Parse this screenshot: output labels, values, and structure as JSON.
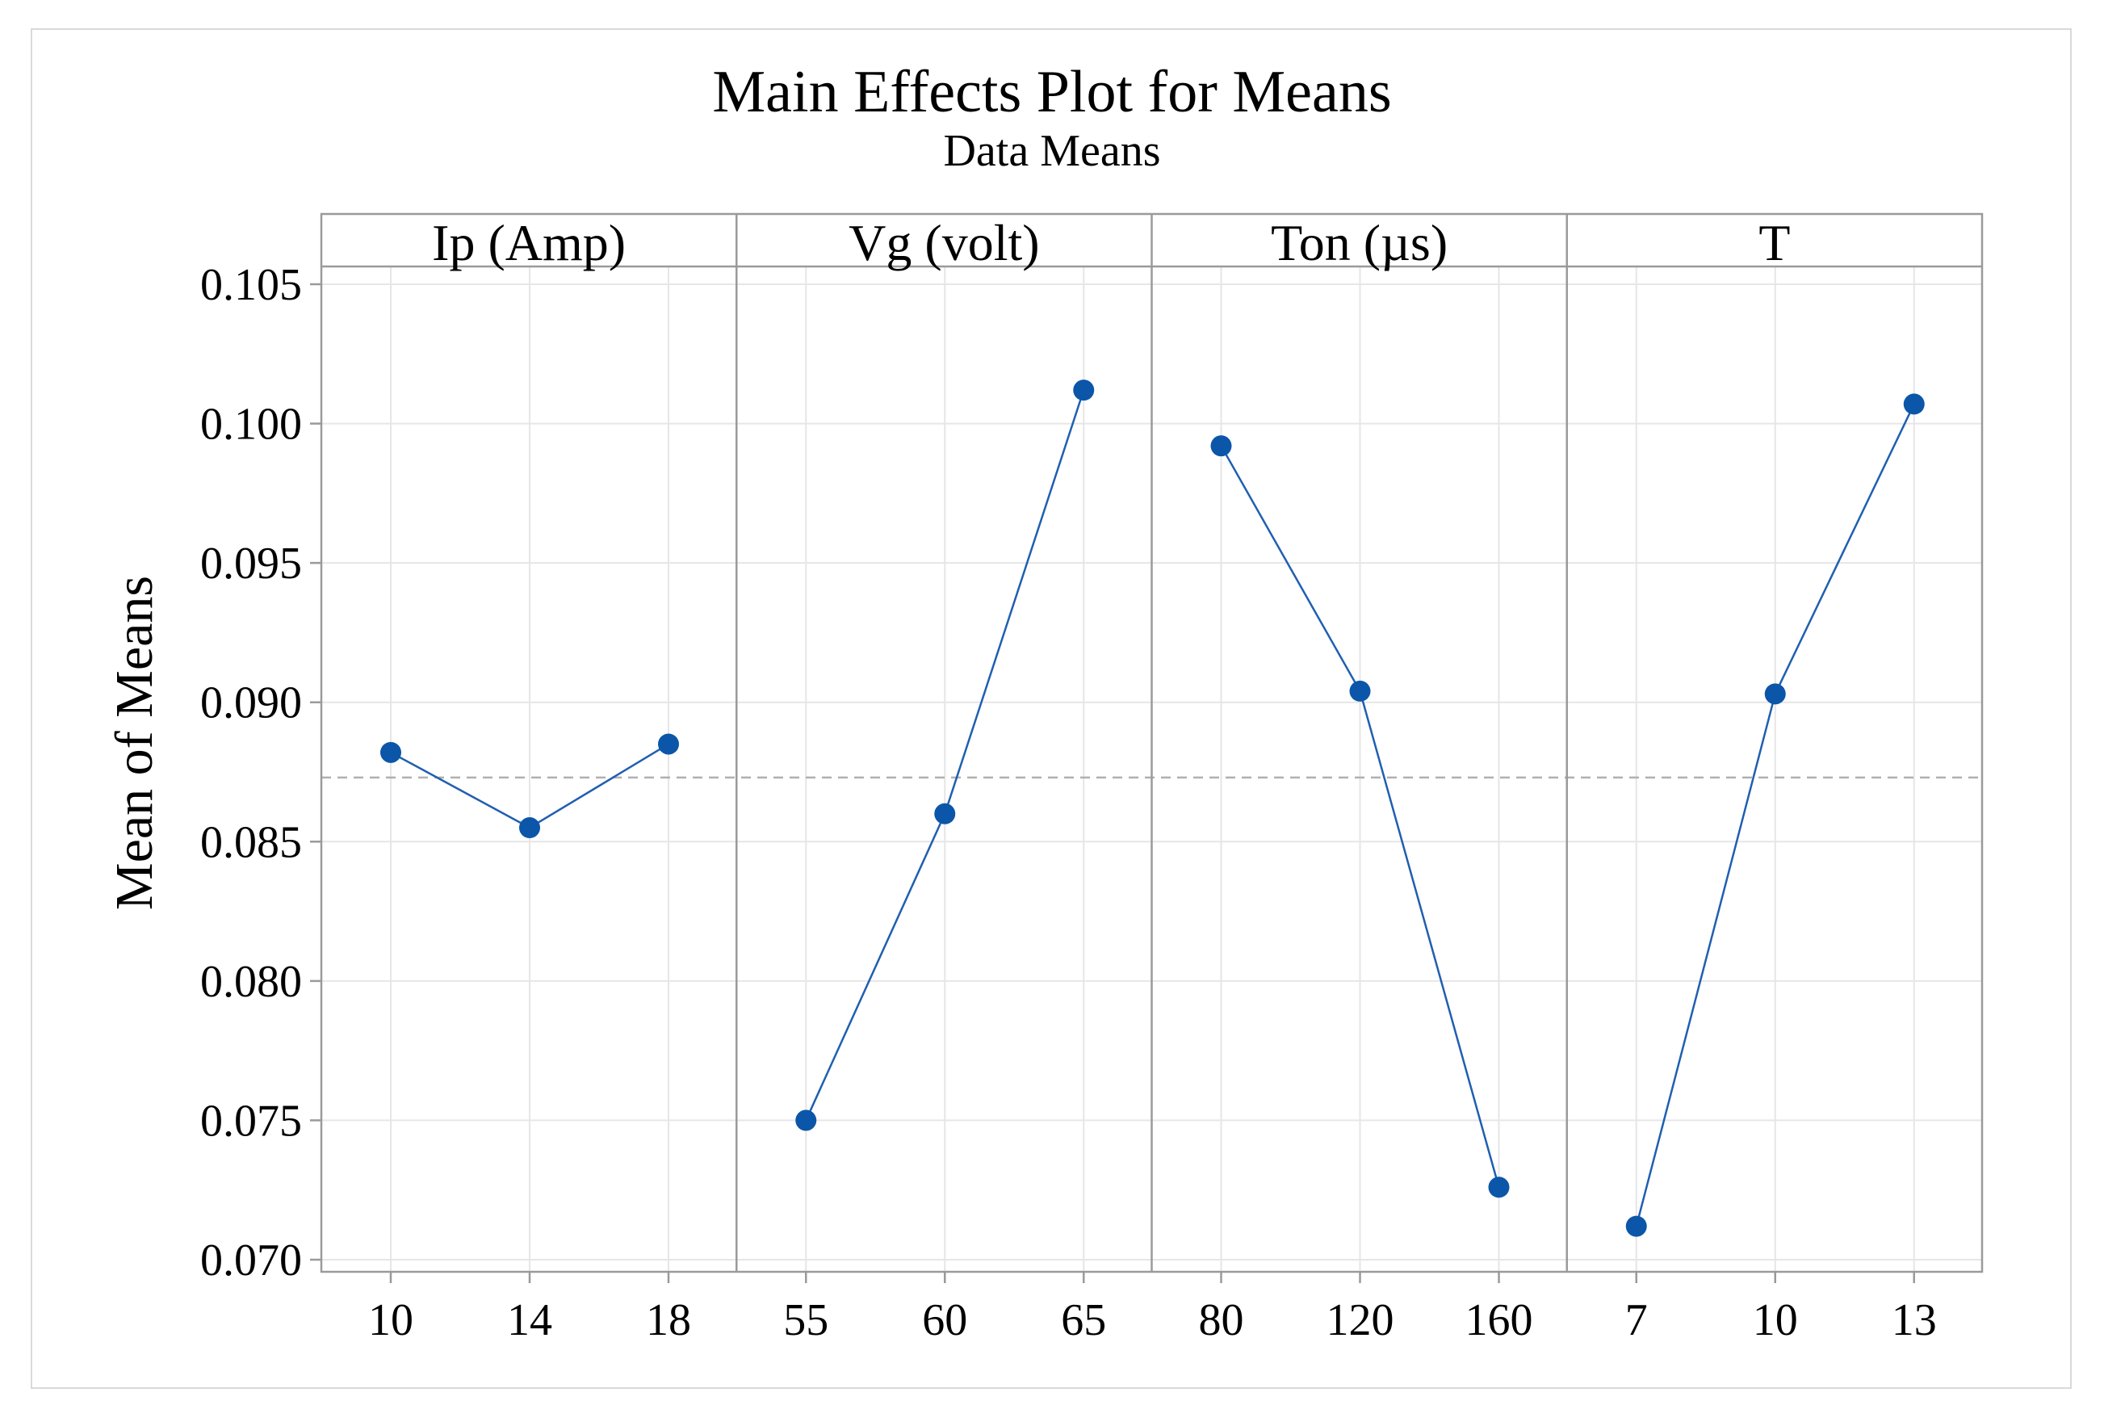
{
  "chart_data": {
    "type": "line",
    "title": "Main Effects Plot for Means",
    "subtitle": "Data Means",
    "ylabel": "Mean of Means",
    "ylim": [
      0.0695,
      0.1055
    ],
    "yticks": [
      "0.105",
      "0.100",
      "0.095",
      "0.090",
      "0.085",
      "0.080",
      "0.075",
      "0.070"
    ],
    "ytick_values": [
      0.105,
      0.1,
      0.095,
      0.09,
      0.085,
      0.08,
      0.075,
      0.07
    ],
    "reference_line": 0.0873,
    "grid": true,
    "colors": {
      "series": "#1f5fb0",
      "marker": "#0b56a8",
      "grid": "#e6e6e6",
      "axis": "#9a9a9a",
      "reference": "#b0b0b0"
    },
    "panels": [
      {
        "name": "Ip (Amp)",
        "levels": [
          "10",
          "14",
          "18"
        ],
        "values": [
          0.0882,
          0.0855,
          0.0885
        ]
      },
      {
        "name": "Vg (volt)",
        "levels": [
          "55",
          "60",
          "65"
        ],
        "values": [
          0.075,
          0.086,
          0.1012
        ]
      },
      {
        "name": "Ton (µs)",
        "levels": [
          "80",
          "120",
          "160"
        ],
        "values": [
          0.0992,
          0.0904,
          0.0726
        ]
      },
      {
        "name": "T",
        "levels": [
          "7",
          "10",
          "13"
        ],
        "values": [
          0.0712,
          0.0903,
          0.1007
        ]
      }
    ]
  }
}
